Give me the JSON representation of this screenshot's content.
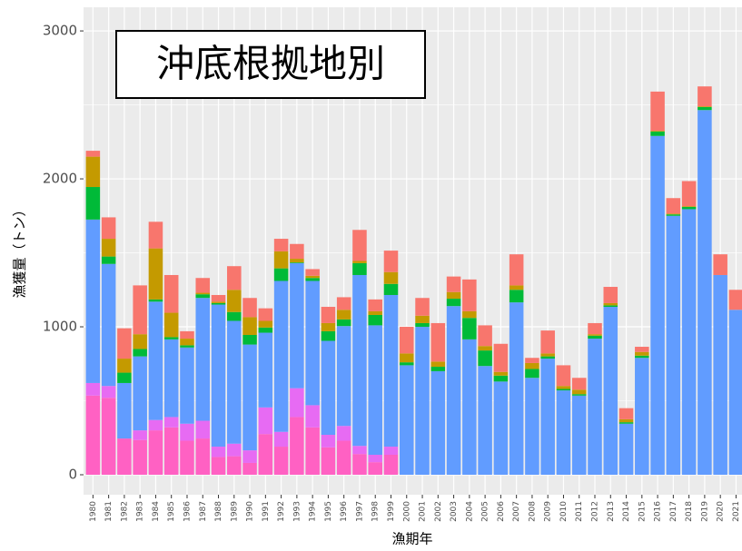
{
  "chart_data": {
    "type": "stacked_bar",
    "title": "沖底根拠地別",
    "x_label": "漁期年",
    "y_label": "漁獲量（トン）",
    "categories": [
      "1980",
      "1981",
      "1982",
      "1983",
      "1984",
      "1985",
      "1986",
      "1987",
      "1988",
      "1989",
      "1990",
      "1991",
      "1992",
      "1993",
      "1994",
      "1995",
      "1996",
      "1997",
      "1998",
      "1999",
      "2000",
      "2001",
      "2002",
      "2003",
      "2004",
      "2005",
      "2006",
      "2007",
      "2008",
      "2009",
      "2010",
      "2011",
      "2012",
      "2013",
      "2014",
      "2015",
      "2016",
      "2017",
      "2018",
      "2019",
      "2020",
      "2021"
    ],
    "series": [
      {
        "color": "#FF61C3",
        "values": [
          535,
          520,
          245,
          235,
          300,
          320,
          230,
          245,
          120,
          125,
          80,
          275,
          190,
          390,
          320,
          185,
          230,
          140,
          85,
          135,
          0,
          0,
          0,
          0,
          0,
          0,
          0,
          0,
          0,
          0,
          0,
          0,
          0,
          0,
          0,
          0,
          0,
          0,
          0,
          0,
          0,
          0
        ]
      },
      {
        "color": "#E76BF3",
        "values": [
          85,
          80,
          0,
          65,
          70,
          70,
          115,
          120,
          70,
          85,
          85,
          180,
          100,
          195,
          150,
          85,
          100,
          55,
          50,
          55,
          0,
          0,
          0,
          0,
          0,
          0,
          0,
          0,
          0,
          0,
          0,
          0,
          0,
          0,
          0,
          0,
          0,
          0,
          0,
          0,
          0,
          0
        ]
      },
      {
        "color": "#619CFF",
        "values": [
          1105,
          825,
          375,
          500,
          800,
          525,
          515,
          830,
          960,
          830,
          715,
          505,
          1020,
          845,
          840,
          635,
          675,
          1155,
          875,
          1025,
          740,
          1000,
          700,
          1140,
          915,
          735,
          630,
          1165,
          655,
          785,
          570,
          535,
          920,
          1135,
          345,
          790,
          2290,
          1750,
          1795,
          2465,
          1350,
          1115
        ]
      },
      {
        "color": "#00BA38",
        "values": [
          220,
          50,
          70,
          50,
          15,
          15,
          15,
          25,
          10,
          60,
          65,
          35,
          85,
          5,
          20,
          65,
          45,
          80,
          70,
          75,
          20,
          25,
          30,
          50,
          145,
          105,
          40,
          85,
          60,
          15,
          10,
          10,
          20,
          10,
          10,
          15,
          30,
          10,
          15,
          20,
          0,
          0
        ]
      },
      {
        "color": "#C49A00",
        "values": [
          205,
          120,
          95,
          100,
          345,
          165,
          45,
          10,
          10,
          150,
          120,
          45,
          115,
          25,
          15,
          55,
          65,
          15,
          25,
          80,
          60,
          50,
          35,
          45,
          45,
          30,
          25,
          30,
          40,
          20,
          20,
          30,
          10,
          15,
          20,
          25,
          5,
          5,
          5,
          5,
          0,
          0
        ]
      },
      {
        "color": "#F8766D",
        "values": [
          40,
          145,
          205,
          330,
          180,
          255,
          50,
          100,
          45,
          160,
          130,
          85,
          85,
          100,
          45,
          110,
          85,
          210,
          80,
          145,
          180,
          120,
          260,
          105,
          215,
          140,
          190,
          210,
          35,
          155,
          140,
          80,
          75,
          110,
          75,
          35,
          265,
          105,
          170,
          135,
          140,
          135
        ]
      }
    ],
    "ylim": [
      -135,
      3160
    ],
    "yticks": [
      0,
      1000,
      2000,
      3000
    ],
    "grid": true
  }
}
